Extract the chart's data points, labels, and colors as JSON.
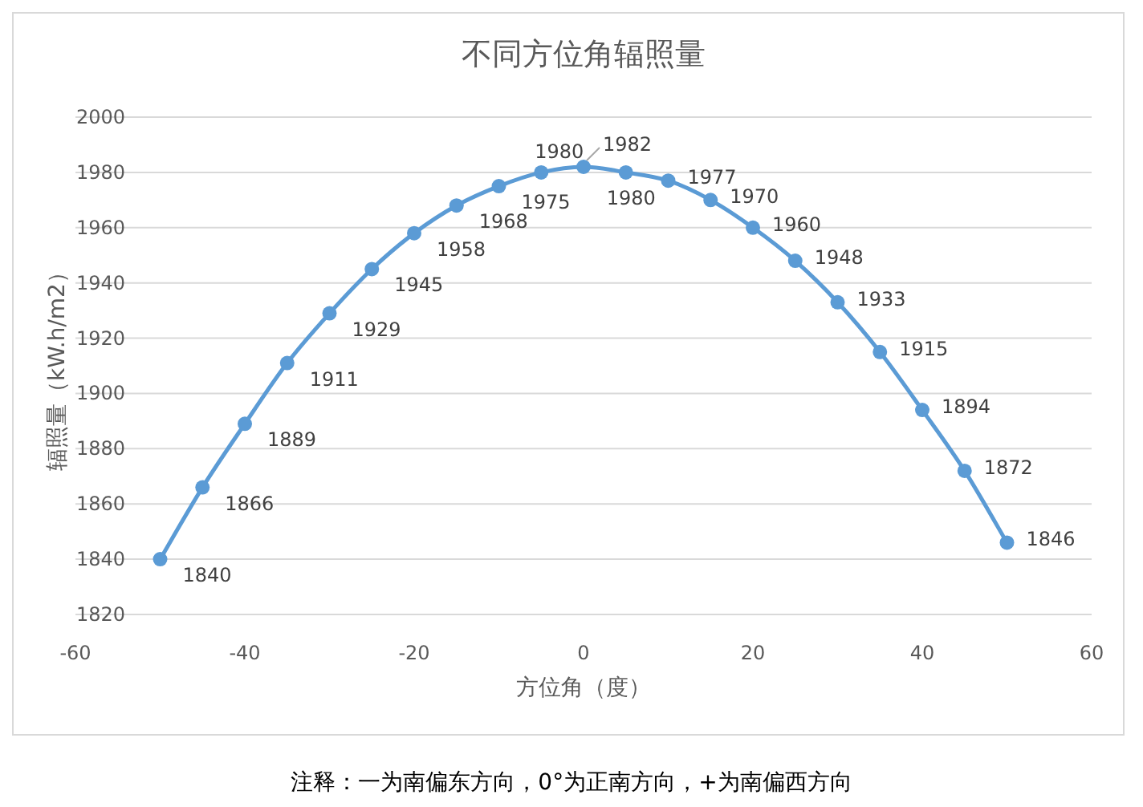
{
  "chart_data": {
    "type": "line",
    "title": "不同方位角辐照量",
    "xlabel": "方位角（度）",
    "ylabel": "辐照量（kW.h/m2）",
    "annotations": [
      "注释：一为南偏东方向，0°为正南方向，+为南偏西方向"
    ],
    "x": [
      -50,
      -45,
      -40,
      -35,
      -30,
      -25,
      -20,
      -15,
      -10,
      -5,
      0,
      5,
      10,
      15,
      20,
      25,
      30,
      35,
      40,
      45,
      50
    ],
    "series": [
      {
        "color": "#5b9bd5",
        "values": [
          1840,
          1866,
          1889,
          1911,
          1929,
          1945,
          1958,
          1968,
          1975,
          1980,
          1982,
          1980,
          1977,
          1970,
          1960,
          1948,
          1933,
          1915,
          1894,
          1872,
          1846
        ]
      }
    ],
    "xlim": [
      -60,
      60
    ],
    "xticks": [
      -60,
      -40,
      -20,
      0,
      20,
      40,
      60
    ],
    "ylim": [
      1820,
      2000
    ],
    "yticks": [
      1820,
      1840,
      1860,
      1880,
      1900,
      1920,
      1940,
      1960,
      1980,
      2000
    ],
    "grid": "y",
    "marker": "circle",
    "line_style": "solid",
    "data_labels": true
  }
}
